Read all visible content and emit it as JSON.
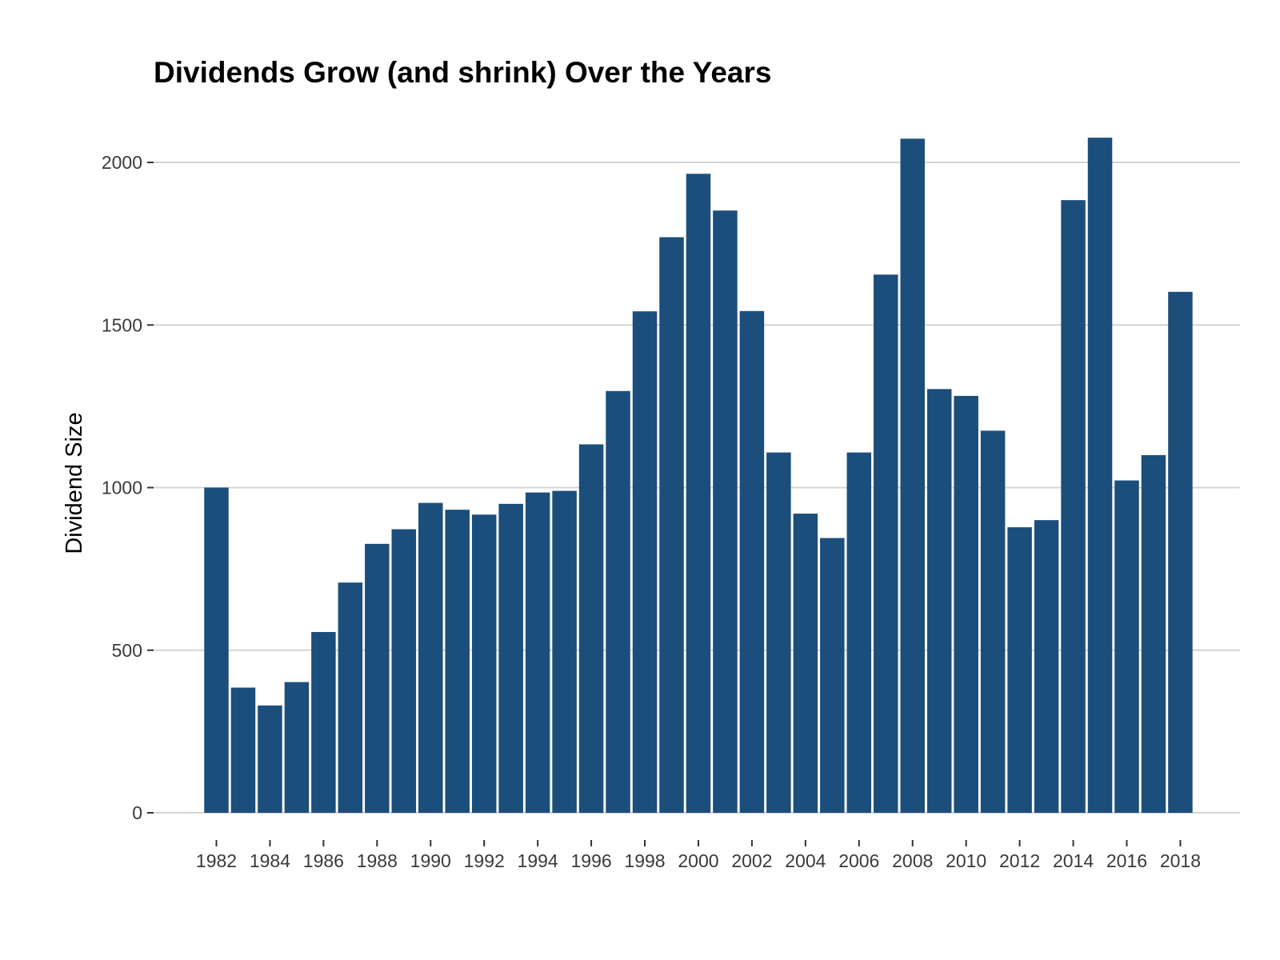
{
  "chart_data": {
    "type": "bar",
    "title": "Dividends Grow (and shrink) Over the Years",
    "xlabel": "",
    "ylabel": "Dividend Size",
    "categories": [
      1982,
      1983,
      1984,
      1985,
      1986,
      1987,
      1988,
      1989,
      1990,
      1991,
      1992,
      1993,
      1994,
      1995,
      1996,
      1997,
      1998,
      1999,
      2000,
      2001,
      2002,
      2003,
      2004,
      2005,
      2006,
      2007,
      2008,
      2009,
      2010,
      2011,
      2012,
      2013,
      2014,
      2015,
      2016,
      2017,
      2018
    ],
    "values": [
      1000,
      385,
      330,
      402,
      556,
      708,
      827,
      872,
      953,
      932,
      917,
      950,
      985,
      990,
      1133,
      1297,
      1542,
      1770,
      1965,
      1852,
      1543,
      1108,
      920,
      845,
      1108,
      1655,
      2073,
      1303,
      1282,
      1175,
      878,
      900,
      1884,
      2076,
      1022,
      1100,
      1602
    ],
    "x_tick_labels": [
      "1982",
      "1984",
      "1986",
      "1988",
      "1990",
      "1992",
      "1994",
      "1996",
      "1998",
      "2000",
      "2002",
      "2004",
      "2006",
      "2008",
      "2010",
      "2012",
      "2014",
      "2016",
      "2018"
    ],
    "y_ticks": [
      0,
      500,
      1000,
      1500,
      2000
    ],
    "ylim": [
      0,
      2100
    ],
    "grid": "horizontal",
    "bar_color": "#1c4e7c",
    "grid_color": "#d4d4d4"
  }
}
